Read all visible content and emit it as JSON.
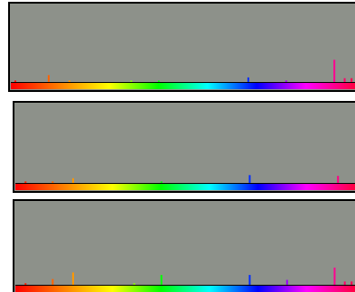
{
  "chart_data": [
    {
      "type": "bar",
      "xlim": [
        0,
        100
      ],
      "ylim": [
        0,
        100
      ],
      "x": [
        1.3,
        11,
        17,
        35,
        43,
        69,
        80,
        94,
        97,
        99
      ],
      "values": [
        2,
        9,
        2,
        2,
        2,
        6,
        2,
        29,
        5,
        5
      ],
      "gradient": [
        "#ff0000",
        "#ff8000",
        "#ffff00",
        "#00ff00",
        "#00ffff",
        "#0000ff",
        "#ff00ff",
        "#ff0040"
      ]
    },
    {
      "type": "bar",
      "xlim": [
        0,
        100
      ],
      "ylim": [
        0,
        100
      ],
      "x": [
        3,
        11,
        17,
        43,
        69,
        95
      ],
      "values": [
        2,
        2,
        6,
        2,
        10,
        9
      ],
      "gradient": [
        "#ff0000",
        "#ff8000",
        "#ffff00",
        "#00ff00",
        "#00ffff",
        "#0000ff",
        "#ff00ff",
        "#ff0040"
      ]
    },
    {
      "type": "bar",
      "xlim": [
        0,
        100
      ],
      "ylim": [
        0,
        100
      ],
      "x": [
        3,
        11,
        17,
        35,
        43,
        69,
        80,
        94,
        97,
        99
      ],
      "values": [
        2,
        7,
        15,
        2,
        12,
        12,
        6,
        21,
        4,
        4
      ],
      "gradient": [
        "#ff0000",
        "#ff8000",
        "#ffff00",
        "#00ff00",
        "#00ffff",
        "#0000ff",
        "#ff00ff",
        "#ff0040"
      ]
    }
  ]
}
